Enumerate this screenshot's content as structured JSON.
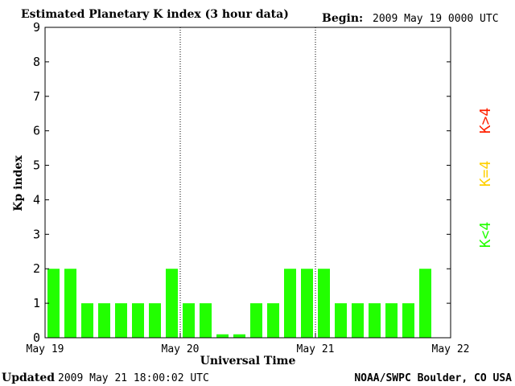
{
  "header": {
    "title": "Estimated Planetary K index (3 hour data)",
    "begin_label": "Begin:",
    "begin_value": "2009 May 19 0000 UTC"
  },
  "footer": {
    "updated_label": "Updated",
    "updated_value": "2009 May 21 18:00:02 UTC",
    "credit": "NOAA/SWPC Boulder, CO USA"
  },
  "legend": {
    "high": {
      "label": "K>4",
      "color": "#ff2000"
    },
    "equal": {
      "label": "K=4",
      "color": "#ffd000"
    },
    "low": {
      "label": "K<4",
      "color": "#22ff00"
    }
  },
  "chart_data": {
    "type": "bar",
    "title": "Estimated Planetary K index (3 hour data)",
    "ylabel": "Kp index",
    "xlabel": "Universal Time",
    "ylim": [
      0,
      9
    ],
    "yticks": [
      0,
      1,
      2,
      3,
      4,
      5,
      6,
      7,
      8,
      9
    ],
    "xticks": [
      "May 19",
      "May 20",
      "May 21",
      "May 22"
    ],
    "interval_hours": 3,
    "bar_color": "#22ff00",
    "values": [
      2,
      2,
      1,
      1,
      1,
      1,
      1,
      2,
      1,
      1,
      0.1,
      0.1,
      1,
      1,
      2,
      2,
      2,
      1,
      1,
      1,
      1,
      1,
      2
    ]
  }
}
